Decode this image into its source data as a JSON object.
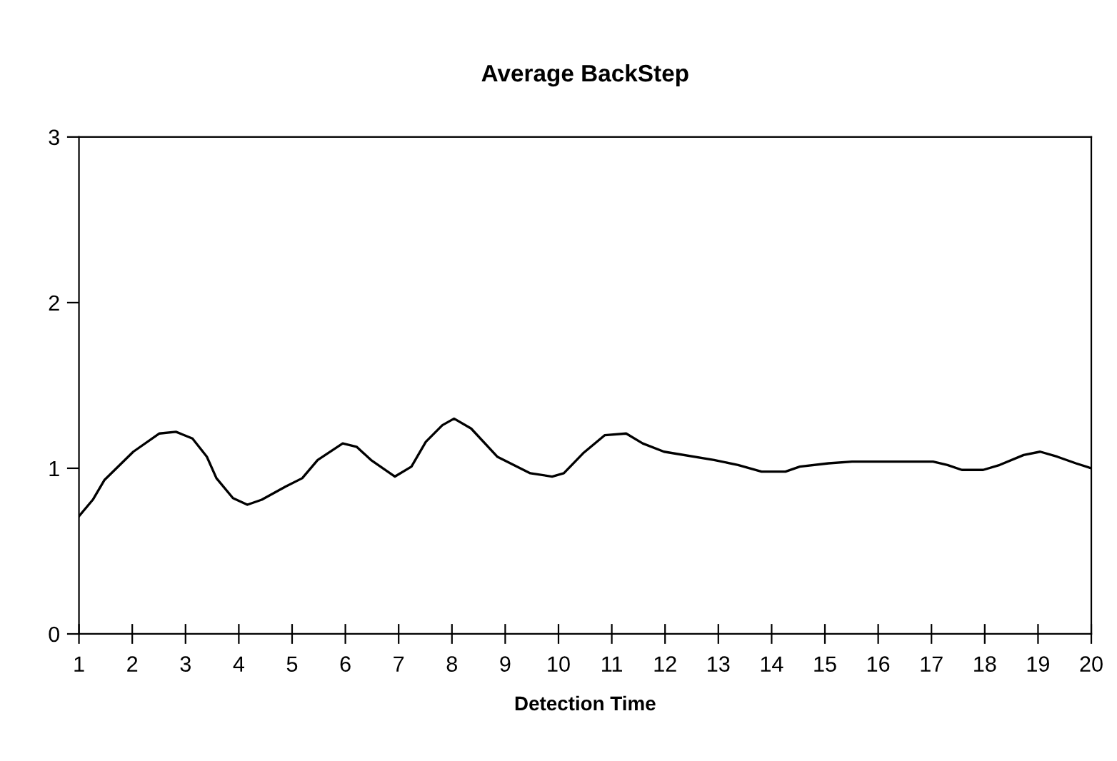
{
  "chart_data": {
    "type": "line",
    "title": "Average BackStep",
    "xlabel": "Detection Time",
    "xlim": [
      1,
      20
    ],
    "xticks": [
      1,
      2,
      3,
      4,
      5,
      6,
      7,
      8,
      9,
      10,
      11,
      12,
      13,
      14,
      15,
      16,
      17,
      18,
      19,
      20
    ],
    "ylim": [
      0,
      3
    ],
    "yticks": [
      0,
      1,
      2,
      3
    ],
    "grid": false,
    "legend": false,
    "marker": "none",
    "line_style": "solid",
    "series": [
      {
        "color": "#000000",
        "x": [
          1,
          1.26,
          1.48,
          2.02,
          2.51,
          2.82,
          3.13,
          3.4,
          3.58,
          3.89,
          4.16,
          4.43,
          4.88,
          5.19,
          5.48,
          5.95,
          6.21,
          6.48,
          6.93,
          7.24,
          7.51,
          7.82,
          8.04,
          8.36,
          8.85,
          9.47,
          9.88,
          10.1,
          10.46,
          10.87,
          11.27,
          11.58,
          11.98,
          12.92,
          13.37,
          13.81,
          14.26,
          14.53,
          15.07,
          15.51,
          17.03,
          17.3,
          17.57,
          17.97,
          18.28,
          18.73,
          19.04,
          19.36,
          19.71,
          20
        ],
        "values": [
          0.71,
          0.81,
          0.93,
          1.1,
          1.21,
          1.22,
          1.18,
          1.07,
          0.94,
          0.82,
          0.78,
          0.81,
          0.89,
          0.94,
          1.05,
          1.15,
          1.13,
          1.05,
          0.95,
          1.01,
          1.16,
          1.26,
          1.3,
          1.24,
          1.07,
          0.97,
          0.95,
          0.97,
          1.09,
          1.2,
          1.21,
          1.15,
          1.1,
          1.05,
          1.02,
          0.98,
          0.98,
          1.01,
          1.03,
          1.04,
          1.04,
          1.02,
          0.99,
          0.99,
          1.02,
          1.08,
          1.1,
          1.07,
          1.03,
          1.0
        ]
      }
    ]
  }
}
